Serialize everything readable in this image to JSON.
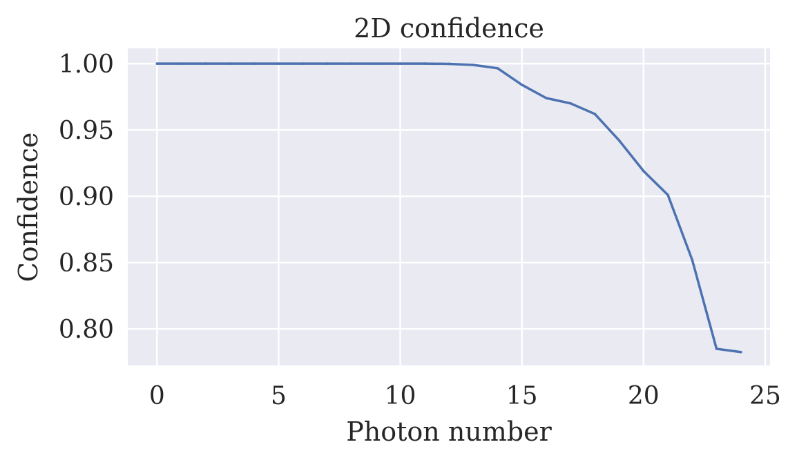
{
  "chart_data": {
    "type": "line",
    "title": "2D confidence",
    "xlabel": "Photon number",
    "ylabel": "Confidence",
    "xlim": [
      -1.2,
      25.2
    ],
    "ylim": [
      0.7725,
      1.0115
    ],
    "xticks": [
      0,
      5,
      10,
      15,
      20,
      25
    ],
    "xtick_labels": [
      "0",
      "5",
      "10",
      "15",
      "20",
      "25"
    ],
    "yticks": [
      0.8,
      0.85,
      0.9,
      0.95,
      1.0
    ],
    "ytick_labels": [
      "0.80",
      "0.85",
      "0.90",
      "0.95",
      "1.00"
    ],
    "grid": true,
    "series": [
      {
        "color": "#4c72b0",
        "x": [
          0,
          1,
          2,
          3,
          4,
          5,
          6,
          7,
          8,
          9,
          10,
          11,
          12,
          13,
          14,
          15,
          16,
          17,
          18,
          19,
          20,
          21,
          22,
          23,
          24
        ],
        "values": [
          1.0,
          1.0,
          1.0,
          1.0,
          1.0,
          1.0,
          1.0,
          1.0,
          1.0,
          1.0,
          1.0,
          1.0,
          0.9998,
          0.999,
          0.9965,
          0.984,
          0.974,
          0.97,
          0.962,
          0.942,
          0.919,
          0.901,
          0.852,
          0.785,
          0.7825
        ]
      }
    ]
  }
}
